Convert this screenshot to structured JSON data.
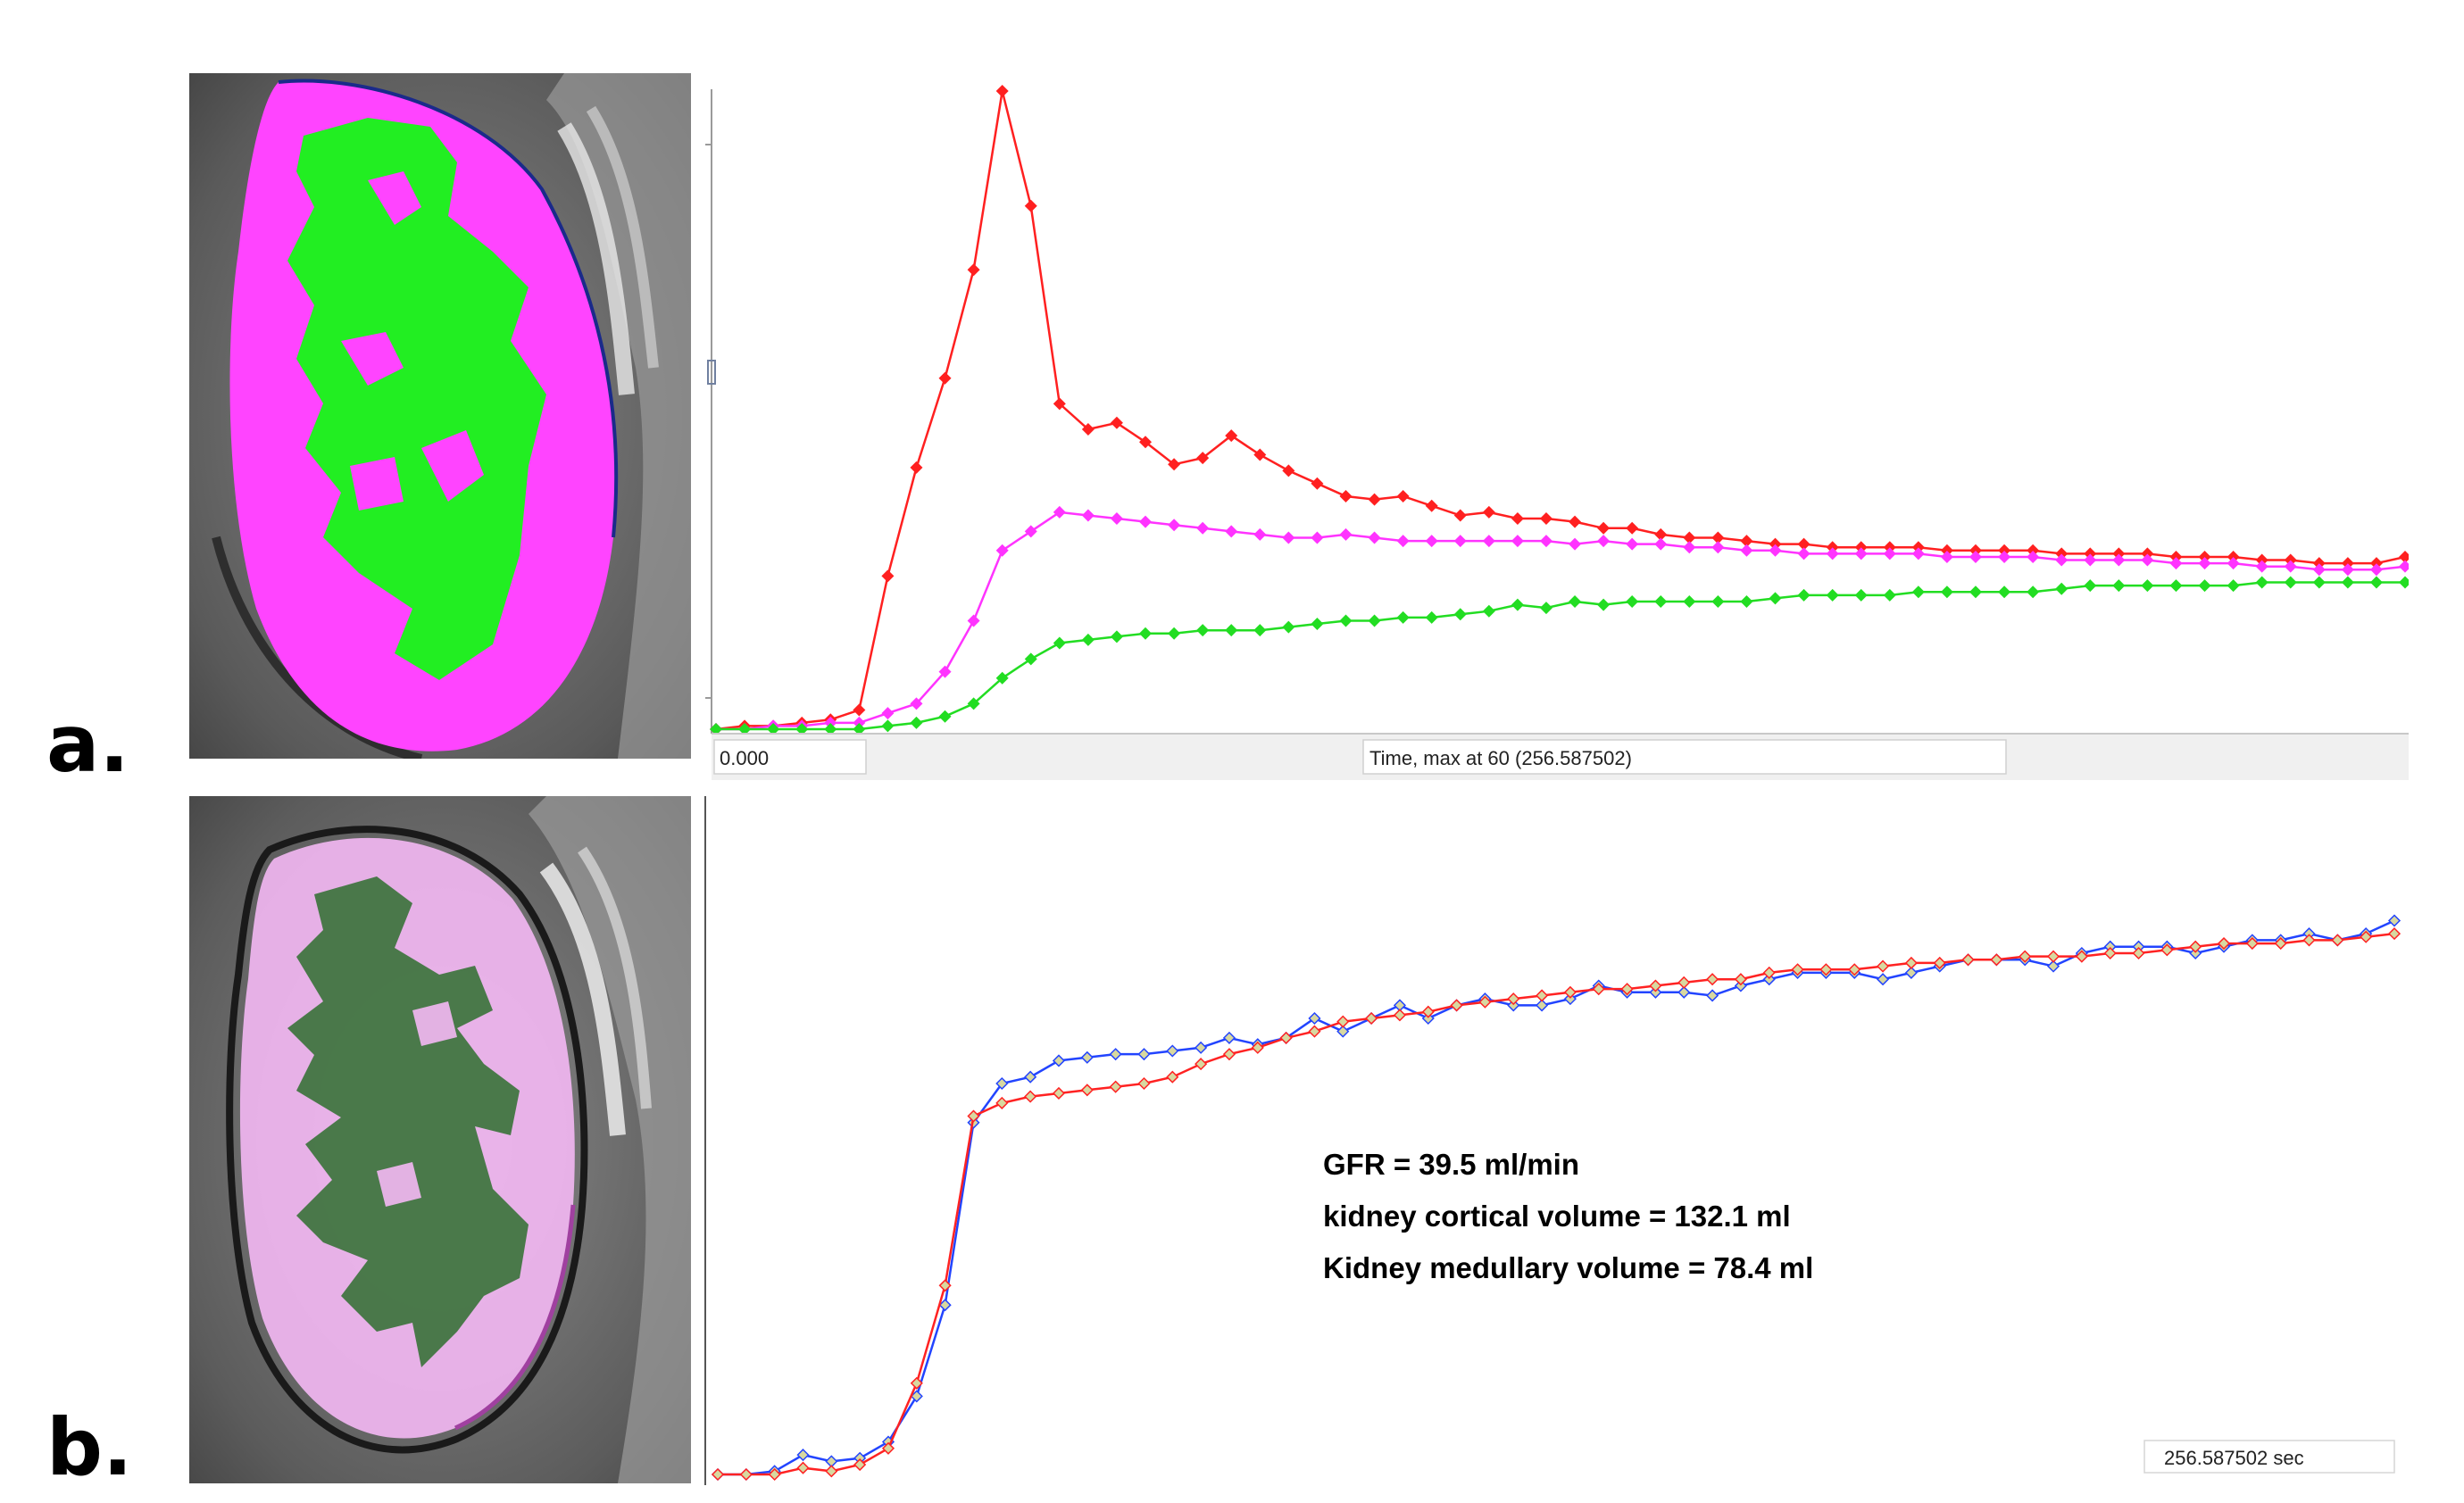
{
  "panel_labels": {
    "a": "a.",
    "b": "b."
  },
  "images": {
    "a": {
      "icon": "kidney-segmentation-mri-icon",
      "cortex_color": "#ff44ff",
      "medulla_color": "#22ee22"
    },
    "b": {
      "icon": "kidney-segmentation-overlay-icon",
      "cortex_color": "#f4b8f4",
      "medulla_color": "#2e6e2e"
    }
  },
  "chart_data": [
    {
      "id": "a",
      "type": "line",
      "x_start_label": "0.000",
      "xlabel": "Time,  max at 60 (256.587502)",
      "x": [
        1,
        2,
        3,
        4,
        5,
        6,
        7,
        8,
        9,
        10,
        11,
        12,
        13,
        14,
        15,
        16,
        17,
        18,
        19,
        20,
        21,
        22,
        23,
        24,
        25,
        26,
        27,
        28,
        29,
        30,
        31,
        32,
        33,
        34,
        35,
        36,
        37,
        38,
        39,
        40,
        41,
        42,
        43,
        44,
        45,
        46,
        47,
        48,
        49,
        50,
        51,
        52,
        53,
        54,
        55,
        56,
        57,
        58,
        59,
        60
      ],
      "xlim": [
        1,
        60
      ],
      "ylim": [
        0,
        100
      ],
      "series": [
        {
          "color": "#ff2020",
          "values": [
            0,
            0.5,
            0.5,
            1,
            1.5,
            3,
            24,
            41,
            55,
            72,
            100,
            82,
            51,
            47,
            48,
            45,
            41.5,
            42.5,
            46,
            43,
            40.5,
            38.5,
            36.5,
            36,
            36.5,
            35,
            33.5,
            34,
            33,
            33,
            32.5,
            31.5,
            31.5,
            30.5,
            30,
            30,
            29.5,
            29,
            29,
            28.5,
            28.5,
            28.5,
            28.5,
            28,
            28,
            28,
            28,
            27.5,
            27.5,
            27.5,
            27.5,
            27,
            27,
            27,
            26.5,
            26.5,
            26,
            26,
            26,
            27
          ]
        },
        {
          "color": "#ff33ff",
          "values": [
            0,
            0,
            0.5,
            0.5,
            1,
            1,
            2.5,
            4,
            9,
            17,
            28,
            31,
            34,
            33.5,
            33,
            32.5,
            32,
            31.5,
            31,
            30.5,
            30,
            30,
            30.5,
            30,
            29.5,
            29.5,
            29.5,
            29.5,
            29.5,
            29.5,
            29,
            29.5,
            29,
            29,
            28.5,
            28.5,
            28,
            28,
            27.5,
            27.5,
            27.5,
            27.5,
            27.5,
            27,
            27,
            27,
            27,
            26.5,
            26.5,
            26.5,
            26.5,
            26,
            26,
            26,
            25.5,
            25.5,
            25,
            25,
            25,
            25.5
          ]
        },
        {
          "color": "#22dd22",
          "values": [
            0,
            0,
            0,
            0,
            0,
            0,
            0.5,
            1,
            2,
            4,
            8,
            11,
            13.5,
            14,
            14.5,
            15,
            15,
            15.5,
            15.5,
            15.5,
            16,
            16.5,
            17,
            17,
            17.5,
            17.5,
            18,
            18.5,
            19.5,
            19,
            20,
            19.5,
            20,
            20,
            20,
            20,
            20,
            20.5,
            21,
            21,
            21,
            21,
            21.5,
            21.5,
            21.5,
            21.5,
            21.5,
            22,
            22.5,
            22.5,
            22.5,
            22.5,
            22.5,
            22.5,
            23,
            23,
            23,
            23,
            23,
            23
          ]
        }
      ]
    },
    {
      "id": "b",
      "type": "line",
      "x": [
        1,
        2,
        3,
        4,
        5,
        6,
        7,
        8,
        9,
        10,
        11,
        12,
        13,
        14,
        15,
        16,
        17,
        18,
        19,
        20,
        21,
        22,
        23,
        24,
        25,
        26,
        27,
        28,
        29,
        30,
        31,
        32,
        33,
        34,
        35,
        36,
        37,
        38,
        39,
        40,
        41,
        42,
        43,
        44,
        45,
        46,
        47,
        48,
        49,
        50,
        51,
        52,
        53,
        54,
        55,
        56,
        57,
        58,
        59,
        60
      ],
      "xlim": [
        1,
        60
      ],
      "ylim": [
        0,
        100
      ],
      "series": [
        {
          "color": "#2244ff",
          "values": [
            0,
            0,
            0.5,
            3,
            2,
            2.5,
            5,
            12,
            26,
            54,
            60,
            61,
            63.5,
            64,
            64.5,
            64.5,
            65,
            65.5,
            67,
            66,
            67,
            70,
            68,
            70,
            72,
            70,
            72,
            73,
            72,
            72,
            73,
            75,
            74,
            74,
            74,
            73.5,
            75,
            76,
            77,
            77,
            77,
            76,
            77,
            78,
            79,
            79,
            79,
            78,
            80,
            81,
            81,
            81,
            80,
            81,
            82,
            82,
            83,
            82,
            83,
            85
          ]
        },
        {
          "color": "#ff2222",
          "values": [
            0,
            0,
            0,
            1,
            0.5,
            1.5,
            4,
            14,
            29,
            55,
            57,
            58,
            58.5,
            59,
            59.5,
            60,
            61,
            63,
            64.5,
            65.5,
            67,
            68,
            69.5,
            70,
            70.5,
            71,
            72,
            72.5,
            73,
            73.5,
            74,
            74.5,
            74.5,
            75,
            75.5,
            76,
            76,
            77,
            77.5,
            77.5,
            77.5,
            78,
            78.5,
            78.5,
            79,
            79,
            79.5,
            79.5,
            79.5,
            80,
            80,
            80.5,
            81,
            81.5,
            81.5,
            81.5,
            82,
            82,
            82.5,
            83
          ]
        }
      ],
      "annotations": [
        "GFR = 39.5  ml/min",
        "kidney cortical volume = 132.1 ml",
        "Kidney medullary volume = 78.4 ml"
      ],
      "time_readout": "256.587502 sec"
    }
  ]
}
